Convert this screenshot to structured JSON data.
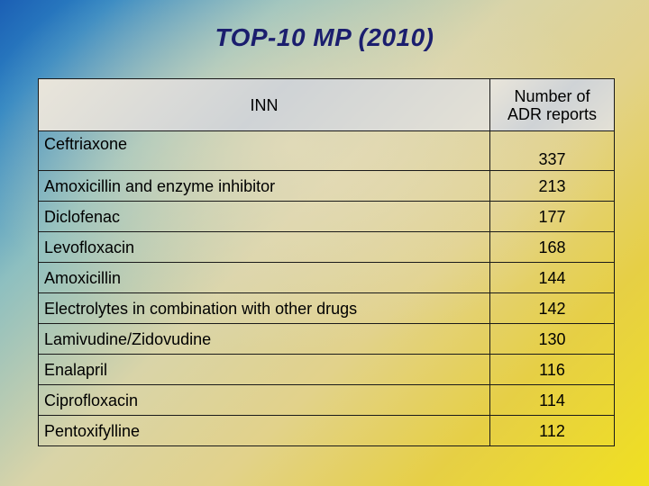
{
  "title": "TOP-10 MP (2010)",
  "table": {
    "headers": [
      "INN",
      "Number of ADR reports"
    ],
    "rows": [
      {
        "inn": "Ceftriaxone",
        "count": "337"
      },
      {
        "inn": "Amoxicillin and enzyme inhibitor",
        "count": "213"
      },
      {
        "inn": "Diclofenac",
        "count": "177"
      },
      {
        "inn": "Levofloxacin",
        "count": "168"
      },
      {
        "inn": "Amoxicillin",
        "count": "144"
      },
      {
        "inn": "Electrolytes in combination with other drugs",
        "count": "142"
      },
      {
        "inn": "Lamivudine/Zidovudine",
        "count": "130"
      },
      {
        "inn": "Enalapril",
        "count": "116"
      },
      {
        "inn": "Ciprofloxacin",
        "count": "114"
      },
      {
        "inn": "Pentoxifylline",
        "count": "112"
      }
    ]
  }
}
